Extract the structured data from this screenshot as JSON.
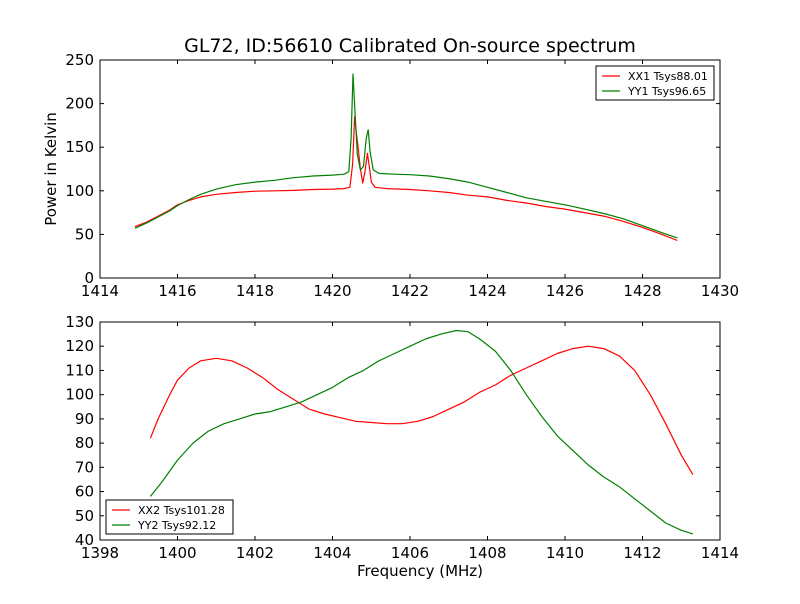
{
  "figure": {
    "title": "GL72, ID:56610 Calibrated On-source spectrum"
  },
  "colors": {
    "xx": "#ff0000",
    "yy": "#008000",
    "axes": "#000000",
    "background": "#ffffff"
  },
  "chart_data": [
    {
      "type": "line",
      "title": "GL72, ID:56610 Calibrated On-source spectrum",
      "xlabel": "",
      "ylabel": "Power in Kelvin",
      "xlim": [
        1414,
        1430
      ],
      "ylim": [
        0,
        250
      ],
      "xticks": [
        1414,
        1416,
        1418,
        1420,
        1422,
        1424,
        1426,
        1428,
        1430
      ],
      "yticks": [
        0,
        50,
        100,
        150,
        200,
        250
      ],
      "grid": false,
      "legend_position": "top-right",
      "series": [
        {
          "name": "XX1 Tsys88.01",
          "color": "#ff0000",
          "points": [
            [
              1414.9,
              59
            ],
            [
              1415.2,
              64
            ],
            [
              1415.5,
              71
            ],
            [
              1415.8,
              78
            ],
            [
              1416.0,
              84
            ],
            [
              1416.3,
              89
            ],
            [
              1416.6,
              93
            ],
            [
              1417.0,
              96
            ],
            [
              1417.5,
              98
            ],
            [
              1418.0,
              99.5
            ],
            [
              1418.5,
              100
            ],
            [
              1419.0,
              100.5
            ],
            [
              1419.5,
              101.5
            ],
            [
              1420.0,
              102
            ],
            [
              1420.3,
              102.5
            ],
            [
              1420.45,
              104
            ],
            [
              1420.52,
              130
            ],
            [
              1420.57,
              185
            ],
            [
              1420.62,
              165
            ],
            [
              1420.66,
              150
            ],
            [
              1420.72,
              125
            ],
            [
              1420.78,
              109
            ],
            [
              1420.84,
              122
            ],
            [
              1420.9,
              143
            ],
            [
              1420.95,
              128
            ],
            [
              1421.0,
              110
            ],
            [
              1421.1,
              104
            ],
            [
              1421.4,
              102.5
            ],
            [
              1422.0,
              101.5
            ],
            [
              1422.5,
              100
            ],
            [
              1423.0,
              98
            ],
            [
              1423.5,
              95
            ],
            [
              1424.0,
              93
            ],
            [
              1424.5,
              89
            ],
            [
              1425.0,
              86
            ],
            [
              1425.5,
              82
            ],
            [
              1426.0,
              79
            ],
            [
              1426.5,
              75
            ],
            [
              1427.0,
              71
            ],
            [
              1427.5,
              65
            ],
            [
              1428.0,
              58
            ],
            [
              1428.5,
              50
            ],
            [
              1428.9,
              43
            ]
          ]
        },
        {
          "name": "YY1 Tsys96.65",
          "color": "#008000",
          "points": [
            [
              1414.9,
              57
            ],
            [
              1415.2,
              63
            ],
            [
              1415.5,
              70
            ],
            [
              1415.8,
              77
            ],
            [
              1416.0,
              83
            ],
            [
              1416.3,
              90
            ],
            [
              1416.6,
              96
            ],
            [
              1417.0,
              102
            ],
            [
              1417.5,
              107
            ],
            [
              1418.0,
              110
            ],
            [
              1418.5,
              112
            ],
            [
              1419.0,
              115
            ],
            [
              1419.5,
              117
            ],
            [
              1420.0,
              118
            ],
            [
              1420.3,
              119
            ],
            [
              1420.42,
              122
            ],
            [
              1420.48,
              160
            ],
            [
              1420.53,
              234
            ],
            [
              1420.58,
              190
            ],
            [
              1420.64,
              142
            ],
            [
              1420.72,
              124
            ],
            [
              1420.8,
              128
            ],
            [
              1420.87,
              160
            ],
            [
              1420.92,
              170
            ],
            [
              1420.97,
              145
            ],
            [
              1421.05,
              124
            ],
            [
              1421.2,
              120
            ],
            [
              1421.6,
              119
            ],
            [
              1422.0,
              118.5
            ],
            [
              1422.5,
              117
            ],
            [
              1423.0,
              114
            ],
            [
              1423.5,
              110
            ],
            [
              1424.0,
              104
            ],
            [
              1424.5,
              98
            ],
            [
              1425.0,
              92
            ],
            [
              1425.5,
              88
            ],
            [
              1426.0,
              84
            ],
            [
              1426.5,
              79
            ],
            [
              1427.0,
              74
            ],
            [
              1427.5,
              68
            ],
            [
              1428.0,
              60
            ],
            [
              1428.5,
              52
            ],
            [
              1428.9,
              46
            ]
          ]
        }
      ]
    },
    {
      "type": "line",
      "title": "",
      "xlabel": "Frequency (MHz)",
      "ylabel": "",
      "xlim": [
        1398,
        1414
      ],
      "ylim": [
        40,
        130
      ],
      "xticks": [
        1398,
        1400,
        1402,
        1404,
        1406,
        1408,
        1410,
        1412,
        1414
      ],
      "yticks": [
        40,
        50,
        60,
        70,
        80,
        90,
        100,
        110,
        120,
        130
      ],
      "grid": false,
      "legend_position": "bottom-left",
      "series": [
        {
          "name": "XX2 Tsys101.28",
          "color": "#ff0000",
          "points": [
            [
              1399.3,
              82
            ],
            [
              1399.5,
              90
            ],
            [
              1399.8,
              100
            ],
            [
              1400.0,
              106
            ],
            [
              1400.3,
              111
            ],
            [
              1400.6,
              114
            ],
            [
              1401.0,
              115
            ],
            [
              1401.4,
              114
            ],
            [
              1401.8,
              111
            ],
            [
              1402.2,
              107
            ],
            [
              1402.6,
              102
            ],
            [
              1403.0,
              98
            ],
            [
              1403.4,
              94
            ],
            [
              1403.8,
              92
            ],
            [
              1404.2,
              90.5
            ],
            [
              1404.6,
              89
            ],
            [
              1405.0,
              88.5
            ],
            [
              1405.4,
              88
            ],
            [
              1405.8,
              88
            ],
            [
              1406.2,
              89
            ],
            [
              1406.6,
              91
            ],
            [
              1407.0,
              94
            ],
            [
              1407.4,
              97
            ],
            [
              1407.8,
              101
            ],
            [
              1408.2,
              104
            ],
            [
              1408.6,
              108
            ],
            [
              1409.0,
              111
            ],
            [
              1409.4,
              114
            ],
            [
              1409.8,
              117
            ],
            [
              1410.2,
              119
            ],
            [
              1410.6,
              120
            ],
            [
              1411.0,
              119
            ],
            [
              1411.4,
              116
            ],
            [
              1411.8,
              110
            ],
            [
              1412.2,
              100
            ],
            [
              1412.6,
              88
            ],
            [
              1413.0,
              75
            ],
            [
              1413.3,
              67
            ]
          ]
        },
        {
          "name": "YY2 Tsys92.12",
          "color": "#008000",
          "points": [
            [
              1399.3,
              58
            ],
            [
              1399.6,
              64
            ],
            [
              1400.0,
              73
            ],
            [
              1400.4,
              80
            ],
            [
              1400.8,
              85
            ],
            [
              1401.2,
              88
            ],
            [
              1401.6,
              90
            ],
            [
              1402.0,
              92
            ],
            [
              1402.4,
              93
            ],
            [
              1402.8,
              95
            ],
            [
              1403.2,
              97
            ],
            [
              1403.6,
              100
            ],
            [
              1404.0,
              103
            ],
            [
              1404.4,
              107
            ],
            [
              1404.8,
              110
            ],
            [
              1405.2,
              114
            ],
            [
              1405.6,
              117
            ],
            [
              1406.0,
              120
            ],
            [
              1406.4,
              123
            ],
            [
              1406.8,
              125
            ],
            [
              1407.2,
              126.5
            ],
            [
              1407.5,
              126
            ],
            [
              1407.8,
              123
            ],
            [
              1408.2,
              118
            ],
            [
              1408.6,
              110
            ],
            [
              1409.0,
              100
            ],
            [
              1409.4,
              91
            ],
            [
              1409.8,
              83
            ],
            [
              1410.2,
              77
            ],
            [
              1410.6,
              71
            ],
            [
              1411.0,
              66
            ],
            [
              1411.4,
              62
            ],
            [
              1411.8,
              57
            ],
            [
              1412.2,
              52
            ],
            [
              1412.6,
              47
            ],
            [
              1413.0,
              44
            ],
            [
              1413.3,
              42.5
            ]
          ]
        }
      ]
    }
  ]
}
